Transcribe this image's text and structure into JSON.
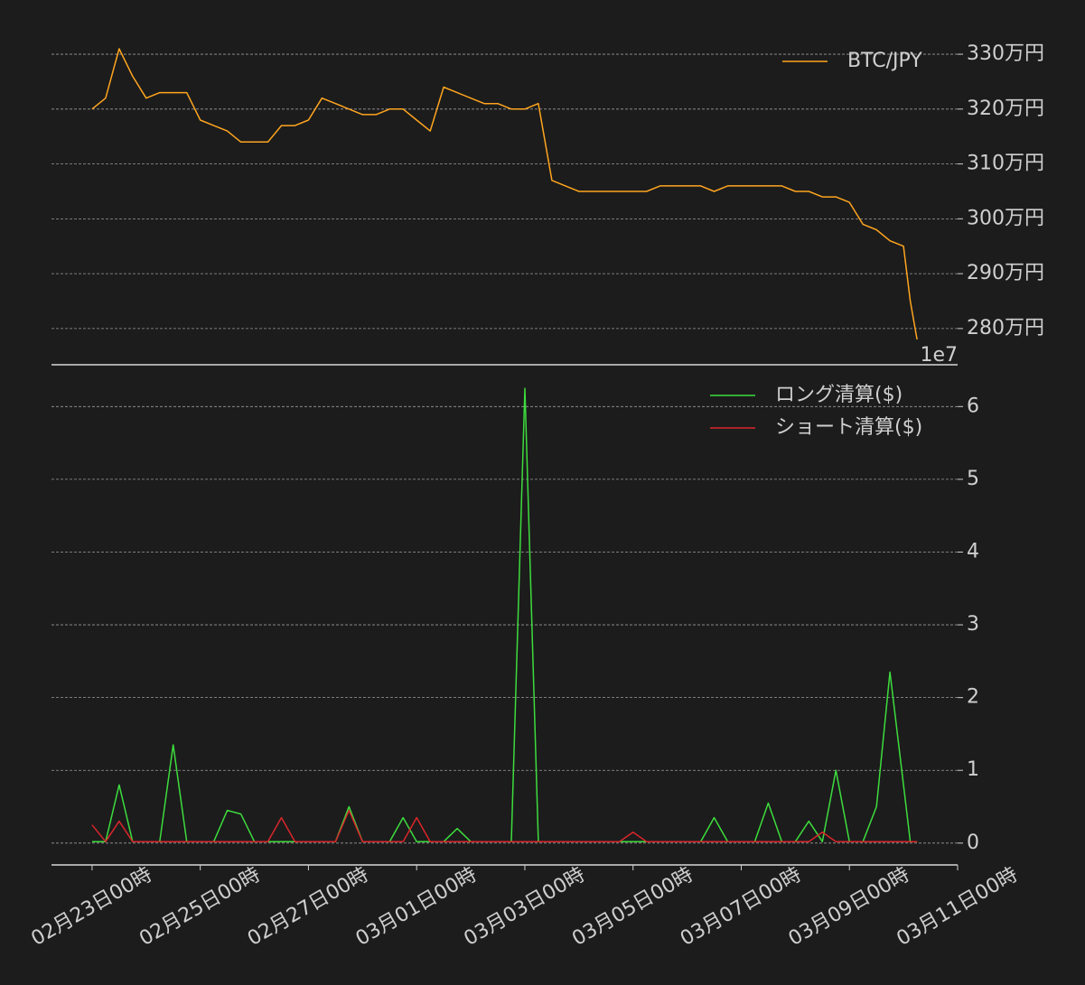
{
  "chart_data": [
    {
      "type": "line",
      "x": [
        "02-23 00:00",
        "02-23 06:00",
        "02-23 12:00",
        "02-23 18:00",
        "02-24 00:00",
        "02-24 06:00",
        "02-24 12:00",
        "02-24 18:00",
        "02-25 00:00",
        "02-25 06:00",
        "02-25 12:00",
        "02-25 18:00",
        "02-26 00:00",
        "02-26 06:00",
        "02-26 12:00",
        "02-26 18:00",
        "02-27 00:00",
        "02-27 06:00",
        "02-27 12:00",
        "02-27 18:00",
        "02-28 00:00",
        "02-28 06:00",
        "02-28 12:00",
        "02-28 18:00",
        "03-01 00:00",
        "03-01 06:00",
        "03-01 12:00",
        "03-01 18:00",
        "03-02 00:00",
        "03-02 06:00",
        "03-02 12:00",
        "03-02 18:00",
        "03-03 00:00",
        "03-03 06:00",
        "03-03 12:00",
        "03-03 18:00",
        "03-04 00:00",
        "03-04 06:00",
        "03-04 12:00",
        "03-04 18:00",
        "03-05 00:00",
        "03-05 06:00",
        "03-05 12:00",
        "03-05 18:00",
        "03-06 00:00",
        "03-06 06:00",
        "03-06 12:00",
        "03-06 18:00",
        "03-07 00:00",
        "03-07 06:00",
        "03-07 12:00",
        "03-07 18:00",
        "03-08 00:00",
        "03-08 06:00",
        "03-08 12:00",
        "03-08 18:00",
        "03-09 00:00",
        "03-09 06:00",
        "03-09 12:00",
        "03-09 18:00",
        "03-10 00:00",
        "03-10 03:00",
        "03-10 06:00"
      ],
      "xlim": [
        "02-22 06:00",
        "03-11 00:00"
      ],
      "series": [
        {
          "name": "BTC/JPY",
          "color": "#ffa51f",
          "values": [
            3200000,
            3220000,
            3310000,
            3260000,
            3220000,
            3230000,
            3230000,
            3230000,
            3180000,
            3170000,
            3160000,
            3140000,
            3140000,
            3140000,
            3170000,
            3170000,
            3180000,
            3220000,
            3210000,
            3200000,
            3190000,
            3190000,
            3200000,
            3200000,
            3180000,
            3160000,
            3240000,
            3230000,
            3220000,
            3210000,
            3210000,
            3200000,
            3200000,
            3210000,
            3070000,
            3060000,
            3050000,
            3050000,
            3050000,
            3050000,
            3050000,
            3050000,
            3060000,
            3060000,
            3060000,
            3060000,
            3050000,
            3060000,
            3060000,
            3060000,
            3060000,
            3060000,
            3050000,
            3050000,
            3040000,
            3040000,
            3030000,
            2990000,
            2980000,
            2960000,
            2950000,
            2850000,
            2780000
          ]
        }
      ],
      "ylim": [
        2734000,
        3333000
      ],
      "yticks": [
        {
          "value": 2800000,
          "label": "280万円"
        },
        {
          "value": 2900000,
          "label": "290万円"
        },
        {
          "value": 3000000,
          "label": "300万円"
        },
        {
          "value": 3100000,
          "label": "310万円"
        },
        {
          "value": 3200000,
          "label": "320万円"
        },
        {
          "value": 3300000,
          "label": "330万円"
        }
      ],
      "grid": true,
      "legend": "upper-right"
    },
    {
      "type": "line",
      "x": [
        "02-23 00:00",
        "02-23 06:00",
        "02-23 12:00",
        "02-23 18:00",
        "02-24 00:00",
        "02-24 06:00",
        "02-24 12:00",
        "02-24 18:00",
        "02-25 00:00",
        "02-25 06:00",
        "02-25 12:00",
        "02-25 18:00",
        "02-26 00:00",
        "02-26 06:00",
        "02-26 12:00",
        "02-26 18:00",
        "02-27 00:00",
        "02-27 06:00",
        "02-27 12:00",
        "02-27 18:00",
        "02-28 00:00",
        "02-28 06:00",
        "02-28 12:00",
        "02-28 18:00",
        "03-01 00:00",
        "03-01 06:00",
        "03-01 12:00",
        "03-01 18:00",
        "03-02 00:00",
        "03-02 06:00",
        "03-02 12:00",
        "03-02 18:00",
        "03-03 00:00",
        "03-03 06:00",
        "03-03 12:00",
        "03-03 18:00",
        "03-04 00:00",
        "03-04 06:00",
        "03-04 12:00",
        "03-04 18:00",
        "03-05 00:00",
        "03-05 06:00",
        "03-05 12:00",
        "03-05 18:00",
        "03-06 00:00",
        "03-06 06:00",
        "03-06 12:00",
        "03-06 18:00",
        "03-07 00:00",
        "03-07 06:00",
        "03-07 12:00",
        "03-07 18:00",
        "03-08 00:00",
        "03-08 06:00",
        "03-08 12:00",
        "03-08 18:00",
        "03-09 00:00",
        "03-09 06:00",
        "03-09 12:00",
        "03-09 18:00",
        "03-10 00:00",
        "03-10 03:00",
        "03-10 06:00"
      ],
      "xlim": [
        "02-22 06:00",
        "03-11 00:00"
      ],
      "xticks": [
        {
          "value": "02-23 00:00",
          "label": "02月23日00時"
        },
        {
          "value": "02-25 00:00",
          "label": "02月25日00時"
        },
        {
          "value": "02-27 00:00",
          "label": "02月27日00時"
        },
        {
          "value": "03-01 00:00",
          "label": "03月01日00時"
        },
        {
          "value": "03-03 00:00",
          "label": "03月03日00時"
        },
        {
          "value": "03-05 00:00",
          "label": "03月05日00時"
        },
        {
          "value": "03-07 00:00",
          "label": "03月07日00時"
        },
        {
          "value": "03-09 00:00",
          "label": "03月09日00時"
        },
        {
          "value": "03-11 00:00",
          "label": "03月11日00時"
        }
      ],
      "series": [
        {
          "name": "ロング清算($)",
          "color": "#3ddc3d",
          "values": [
            0.02,
            0.02,
            0.8,
            0.02,
            0.02,
            0.02,
            1.35,
            0.02,
            0.02,
            0.02,
            0.45,
            0.4,
            0.02,
            0.02,
            0.02,
            0.02,
            0.02,
            0.02,
            0.02,
            0.5,
            0.02,
            0.02,
            0.02,
            0.35,
            0.02,
            0.02,
            0.02,
            0.2,
            0.02,
            0.02,
            0.02,
            0.02,
            6.25,
            0.02,
            0.02,
            0.02,
            0.02,
            0.02,
            0.02,
            0.02,
            0.02,
            0.02,
            0.02,
            0.02,
            0.02,
            0.02,
            0.35,
            0.02,
            0.02,
            0.02,
            0.55,
            0.02,
            0.02,
            0.3,
            0.02,
            1.0,
            0.02,
            0.02,
            0.5,
            2.35,
            0.8,
            0.02,
            0.02
          ]
        },
        {
          "name": "ショート清算($)",
          "color": "#d9262b",
          "values": [
            0.25,
            0.02,
            0.3,
            0.02,
            0.02,
            0.02,
            0.02,
            0.02,
            0.02,
            0.02,
            0.02,
            0.02,
            0.02,
            0.02,
            0.35,
            0.02,
            0.02,
            0.02,
            0.02,
            0.45,
            0.02,
            0.02,
            0.02,
            0.02,
            0.35,
            0.02,
            0.02,
            0.02,
            0.02,
            0.02,
            0.02,
            0.02,
            0.02,
            0.02,
            0.02,
            0.02,
            0.02,
            0.02,
            0.02,
            0.02,
            0.15,
            0.02,
            0.02,
            0.02,
            0.02,
            0.02,
            0.02,
            0.02,
            0.02,
            0.02,
            0.02,
            0.02,
            0.02,
            0.02,
            0.15,
            0.02,
            0.02,
            0.02,
            0.02,
            0.02,
            0.02,
            0.02,
            0.02
          ]
        }
      ],
      "ylim": [
        -0.3,
        6.5
      ],
      "yticks": [
        0,
        1,
        2,
        3,
        4,
        5,
        6
      ],
      "offset_label": "1e7",
      "grid": true,
      "legend": "upper-right"
    }
  ]
}
